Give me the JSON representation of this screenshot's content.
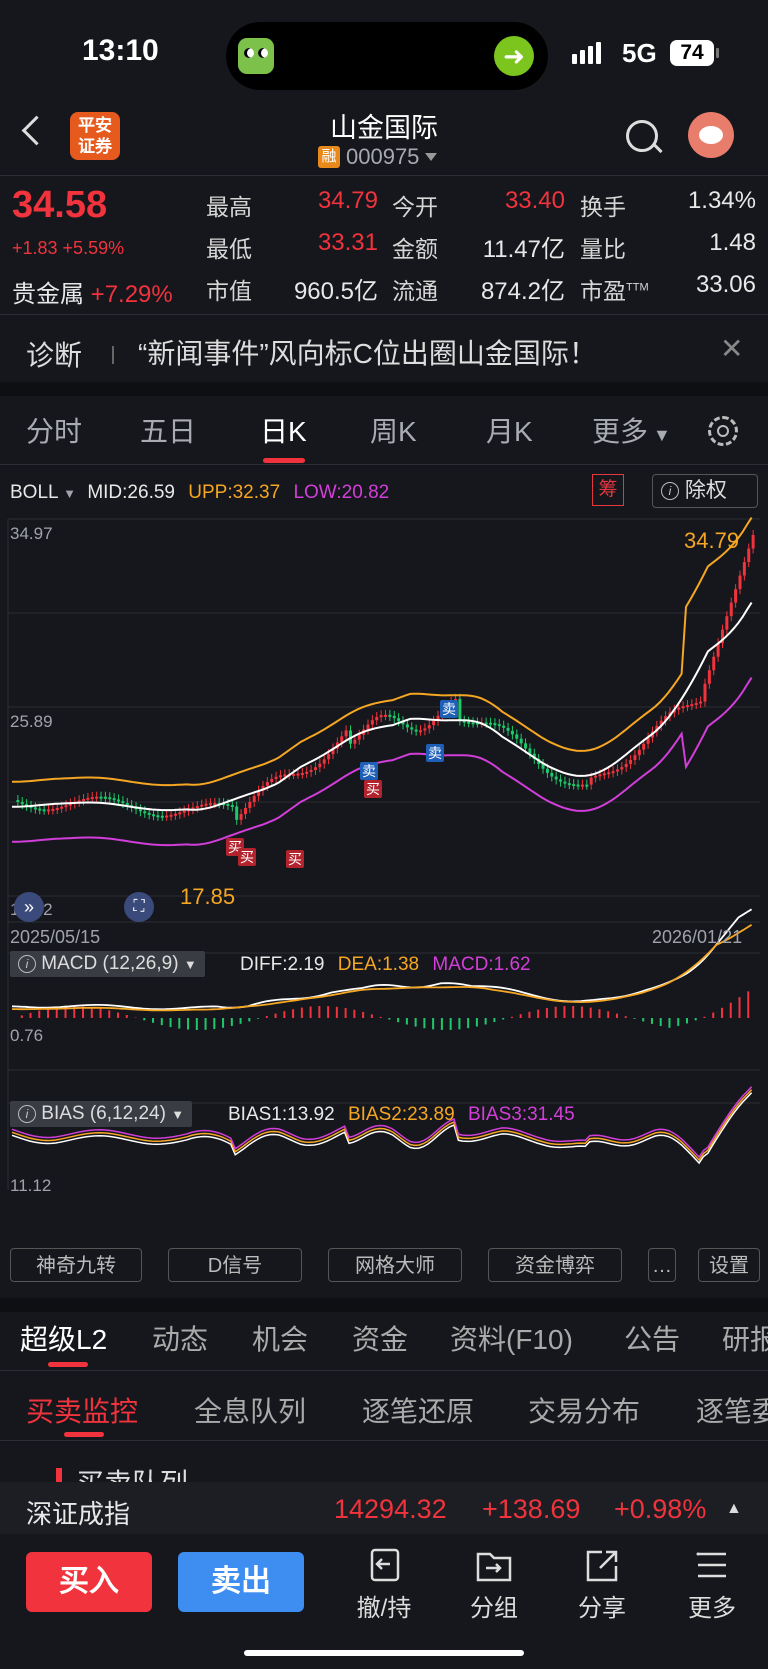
{
  "status_bar": {
    "time": "13:10",
    "network": "5G",
    "battery": "74"
  },
  "header": {
    "broker_logo": "平安\n证券",
    "stock_name": "山金国际",
    "margin_tag": "融",
    "stock_code": "000975"
  },
  "quote": {
    "price": "34.58",
    "change": "+1.83 +5.59%",
    "sector_name": "贵金属",
    "sector_change": "+7.29%",
    "fields": [
      {
        "label": "最高",
        "value": "34.79",
        "color": "red"
      },
      {
        "label": "今开",
        "value": "33.40",
        "color": "red"
      },
      {
        "label": "换手",
        "value": "1.34%",
        "color": "white"
      },
      {
        "label": "最低",
        "value": "33.31",
        "color": "red"
      },
      {
        "label": "金额",
        "value": "11.47亿",
        "color": "white"
      },
      {
        "label": "量比",
        "value": "1.48",
        "color": "white"
      },
      {
        "label": "市值",
        "value": "960.5亿",
        "color": "white"
      },
      {
        "label": "流通",
        "value": "874.2亿",
        "color": "white"
      },
      {
        "label": "市盈",
        "value": "33.06",
        "color": "white",
        "sup": "TTM"
      }
    ]
  },
  "news": {
    "tag": "诊断",
    "text": "“新闻事件”风向标C位出圈山金国际！"
  },
  "chart_tabs": [
    "分时",
    "五日",
    "日K",
    "周K",
    "月K",
    "更多"
  ],
  "boll": {
    "name": "BOLL",
    "mid": "MID:26.59",
    "upp": "UPP:32.37",
    "low": "LOW:20.82",
    "chou": "筹",
    "chuquan": "除权"
  },
  "kline": {
    "y_high_label": "34.97",
    "y_mid_label": "25.89",
    "y_low_label": "16.82",
    "max_label": "34.79",
    "min_label": "17.85",
    "date_start": "2025/05/15",
    "date_end": "2026/01/21",
    "signals": [
      {
        "text": "买",
        "type": "buy"
      },
      {
        "text": "买",
        "type": "buy"
      },
      {
        "text": "买",
        "type": "buy"
      },
      {
        "text": "卖",
        "type": "sell"
      },
      {
        "text": "买",
        "type": "buy"
      },
      {
        "text": "卖",
        "type": "sell"
      },
      {
        "text": "卖",
        "type": "sell"
      }
    ]
  },
  "macd": {
    "name": "MACD (12,26,9)",
    "diff": "DIFF:2.19",
    "dea": "DEA:1.38",
    "macd": "MACD:1.62",
    "y_label": "0.76"
  },
  "bias": {
    "name": "BIAS (6,12,24)",
    "bias1": "BIAS1:13.92",
    "bias2": "BIAS2:23.89",
    "bias3": "BIAS3:31.45",
    "y_label": "11.12"
  },
  "tool_buttons": [
    "神奇九转",
    "D信号",
    "网格大师",
    "资金博弈",
    "设置"
  ],
  "bottom_tabs": [
    "超级L2",
    "动态",
    "机会",
    "资金",
    "资料(F10)",
    "公告",
    "研报"
  ],
  "sub_tabs": [
    "买卖监控",
    "全息队列",
    "逐笔还原",
    "交易分布",
    "逐笔委托"
  ],
  "section_peek": "买卖队列",
  "index_bar": {
    "name": "深证成指",
    "value": "14294.32",
    "change": "+138.69",
    "pct": "+0.98%"
  },
  "actions": {
    "buy": "买入",
    "sell": "卖出",
    "items": [
      "撤/持",
      "分组",
      "分享",
      "更多"
    ]
  },
  "colors": {
    "up": "#f0333c",
    "down": "#1fc86b",
    "upp": "#f5a623",
    "mid": "#ffffff",
    "low": "#d23ed9",
    "bg": "#16171c"
  }
}
